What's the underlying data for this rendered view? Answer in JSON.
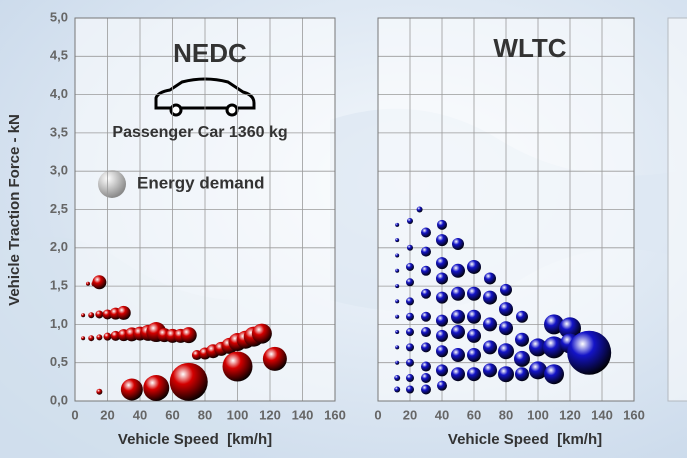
{
  "chart_data": [
    {
      "type": "scatter",
      "title": "NEDC",
      "xlabel": "Vehicle Speed  [km/h]",
      "ylabel": "Vehicle Traction Force - kN",
      "annotations": [
        "Passenger Car 1360 kg",
        "Energy demand"
      ],
      "xlim": [
        0,
        160
      ],
      "ylim": [
        0,
        5
      ],
      "grid": true,
      "xticks": [
        0,
        20,
        40,
        60,
        80,
        100,
        120,
        140,
        160
      ],
      "yticks": [
        {
          "value": 0,
          "label": "0,0"
        },
        {
          "value": 0.5,
          "label": "0,5"
        },
        {
          "value": 1,
          "label": "1,0"
        },
        {
          "value": 1.5,
          "label": "1,5"
        },
        {
          "value": 2,
          "label": "2,0"
        },
        {
          "value": 2.5,
          "label": "2,5"
        },
        {
          "value": 3,
          "label": "3,0"
        },
        {
          "value": 3.5,
          "label": "3,5"
        },
        {
          "value": 4,
          "label": "4,0"
        },
        {
          "value": 4.5,
          "label": "4,5"
        },
        {
          "value": 5,
          "label": "5,0"
        }
      ],
      "series": [
        {
          "color": "#d40000",
          "x": [
            8,
            12,
            15,
            5,
            10,
            15,
            20,
            25,
            30,
            5,
            10,
            15,
            20,
            25,
            30,
            35,
            40,
            45,
            50,
            55,
            60,
            65,
            70,
            75,
            80,
            85,
            90,
            95,
            100,
            105,
            110,
            115,
            15,
            35,
            50,
            70,
            100,
            123
          ],
          "values": [
            1.53,
            1.53,
            1.55,
            1.12,
            1.12,
            1.13,
            1.13,
            1.14,
            1.15,
            0.82,
            0.82,
            0.83,
            0.84,
            0.85,
            0.86,
            0.87,
            0.88,
            0.89,
            0.9,
            0.86,
            0.85,
            0.85,
            0.86,
            0.6,
            0.62,
            0.65,
            0.68,
            0.72,
            0.77,
            0.8,
            0.84,
            0.88,
            0.12,
            0.15,
            0.17,
            0.25,
            0.45,
            0.55
          ],
          "sizes": [
            4,
            9,
            49,
            4,
            9,
            16,
            25,
            36,
            49,
            4,
            9,
            9,
            16,
            25,
            36,
            49,
            49,
            64,
            100,
            49,
            49,
            49,
            64,
            25,
            36,
            49,
            49,
            64,
            81,
            81,
            100,
            100,
            9,
            121,
            169,
            361,
            225,
            144
          ]
        }
      ]
    },
    {
      "type": "scatter",
      "title": "WLTC",
      "xlabel": "Vehicle Speed  [km/h]",
      "xlim": [
        0,
        160
      ],
      "ylim": [
        0,
        5
      ],
      "grid": true,
      "xticks": [
        0,
        20,
        40,
        60,
        80,
        100,
        120,
        140,
        160
      ],
      "yticks": [
        0,
        0.5,
        1,
        1.5,
        2,
        2.5,
        3,
        3.5,
        4,
        4.5,
        5
      ],
      "series": [
        {
          "color": "#1414c8",
          "x": [
            12,
            12,
            12,
            12,
            12,
            12,
            12,
            12,
            12,
            12,
            12,
            12,
            20,
            20,
            20,
            20,
            20,
            20,
            20,
            20,
            20,
            20,
            20,
            26,
            30,
            30,
            30,
            30,
            30,
            30,
            30,
            30,
            30,
            30,
            40,
            40,
            40,
            40,
            40,
            40,
            40,
            40,
            40,
            40,
            50,
            50,
            50,
            50,
            50,
            50,
            50,
            60,
            60,
            60,
            60,
            60,
            60,
            70,
            70,
            70,
            70,
            70,
            80,
            80,
            80,
            80,
            80,
            90,
            90,
            90,
            90,
            100,
            100,
            110,
            110,
            110,
            120,
            120,
            132
          ],
          "values": [
            2.3,
            2.1,
            1.9,
            1.7,
            1.5,
            1.3,
            1.1,
            0.9,
            0.7,
            0.5,
            0.3,
            0.15,
            2.35,
            2.0,
            1.75,
            1.55,
            1.3,
            1.1,
            0.9,
            0.7,
            0.5,
            0.3,
            0.15,
            2.5,
            2.2,
            1.95,
            1.7,
            1.4,
            1.1,
            0.9,
            0.7,
            0.45,
            0.3,
            0.15,
            2.3,
            2.1,
            1.8,
            1.6,
            1.35,
            1.05,
            0.85,
            0.65,
            0.4,
            0.2,
            2.05,
            1.7,
            1.4,
            1.1,
            0.9,
            0.6,
            0.35,
            1.75,
            1.4,
            1.1,
            0.85,
            0.6,
            0.35,
            1.6,
            1.35,
            1.0,
            0.7,
            0.4,
            1.45,
            1.2,
            0.95,
            0.65,
            0.35,
            1.1,
            0.8,
            0.55,
            0.35,
            0.7,
            0.4,
            1.0,
            0.7,
            0.35,
            0.95,
            0.75,
            0.63
          ],
          "sizes": [
            4,
            4,
            4,
            4,
            4,
            4,
            4,
            4,
            4,
            4,
            9,
            9,
            9,
            9,
            16,
            16,
            16,
            16,
            16,
            16,
            16,
            16,
            16,
            9,
            25,
            25,
            25,
            25,
            25,
            25,
            25,
            25,
            25,
            25,
            25,
            36,
            36,
            36,
            36,
            36,
            36,
            36,
            36,
            25,
            36,
            49,
            49,
            49,
            49,
            49,
            49,
            49,
            49,
            49,
            49,
            49,
            49,
            36,
            49,
            49,
            49,
            49,
            36,
            49,
            49,
            64,
            64,
            36,
            49,
            64,
            49,
            81,
            81,
            100,
            121,
            100,
            121,
            100,
            484
          ]
        }
      ]
    }
  ]
}
